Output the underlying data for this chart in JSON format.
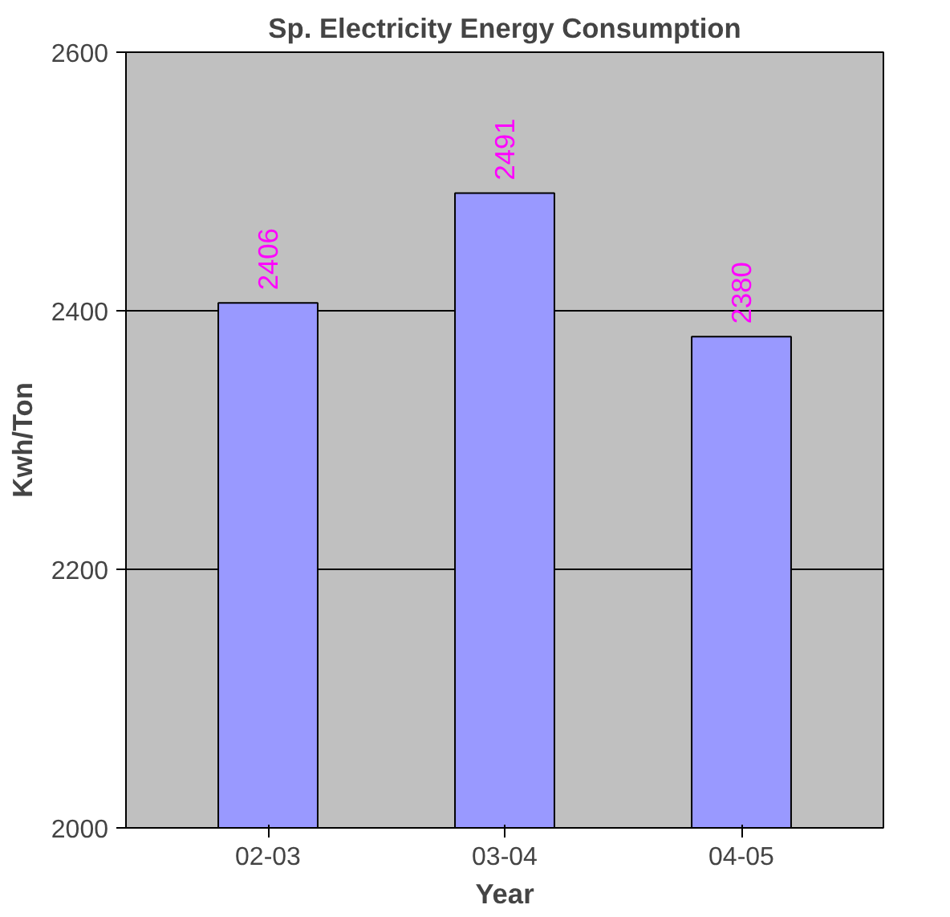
{
  "chart_data": {
    "type": "bar",
    "title": "Sp. Electricity Energy Consumption",
    "xlabel": "Year",
    "ylabel": "Kwh/Ton",
    "categories": [
      "02-03",
      "03-04",
      "04-05"
    ],
    "values": [
      2406,
      2491,
      2380
    ],
    "color": "#9999ff",
    "ylim": [
      2000,
      2600
    ],
    "yticks": [
      2000,
      2200,
      2400,
      2600
    ],
    "grid": "y",
    "data_labels": true
  }
}
